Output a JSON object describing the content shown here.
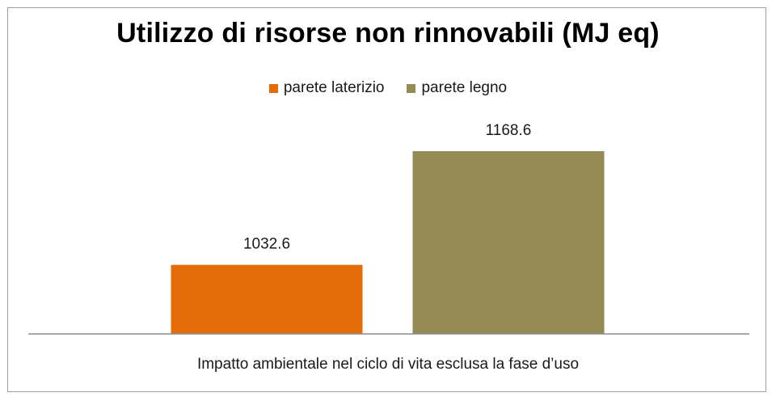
{
  "chart_data": {
    "type": "bar",
    "title": "Utilizzo di risorse non rinnovabili (MJ eq)",
    "categories": [
      "Impatto ambientale nel ciclo di vita esclusa la fase d’uso"
    ],
    "series": [
      {
        "name": "parete laterizio",
        "values": [
          1032.6
        ],
        "color": "#E36C09",
        "label": "1032.6"
      },
      {
        "name": "parete legno",
        "values": [
          1168.6
        ],
        "color": "#948A54",
        "label": "1168.6"
      }
    ],
    "xlabel": "",
    "ylabel": "",
    "ylim": [
      950,
      1200
    ],
    "grid": false,
    "legend_position": "top"
  }
}
